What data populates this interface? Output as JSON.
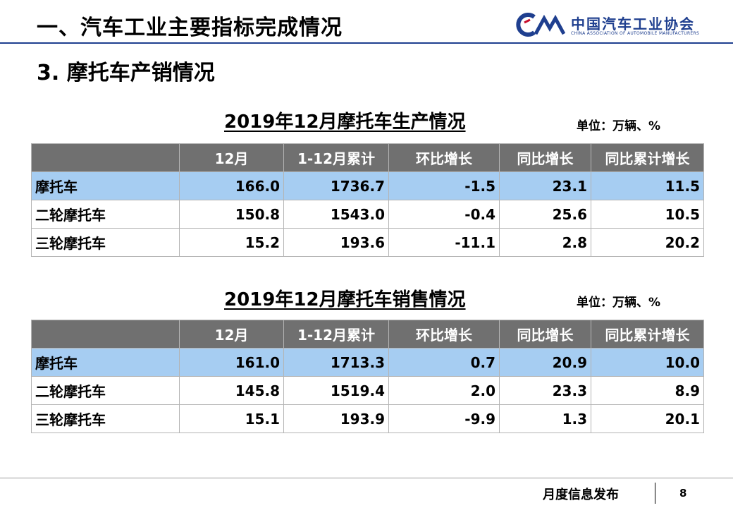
{
  "header": {
    "title": "一、汽车工业主要指标完成情况",
    "subtitle": "3. 摩托车产销情况",
    "logo_cn": "中国汽车工业协会",
    "logo_en": "CHINA ASSOCIATION OF AUTOMOBILE MANUFACTURERS",
    "logo_mark": "CAAM"
  },
  "columns": [
    "",
    "12月",
    "1-12月累计",
    "环比增长",
    "同比增长",
    "同比累计增长"
  ],
  "production": {
    "caption": "2019年12月摩托车生产情况",
    "unit": "单位：万辆、%",
    "rows": [
      {
        "name": "摩托车",
        "v": [
          "166.0",
          "1736.7",
          "-1.5",
          "23.1",
          "11.5"
        ]
      },
      {
        "name": "二轮摩托车",
        "v": [
          "150.8",
          "1543.0",
          "-0.4",
          "25.6",
          "10.5"
        ]
      },
      {
        "name": "三轮摩托车",
        "v": [
          "15.2",
          "193.6",
          "-11.1",
          "2.8",
          "20.2"
        ]
      }
    ]
  },
  "sales": {
    "caption": "2019年12月摩托车销售情况",
    "unit": "单位：万辆、%",
    "rows": [
      {
        "name": "摩托车",
        "v": [
          "161.0",
          "1713.3",
          "0.7",
          "20.9",
          "10.0"
        ]
      },
      {
        "name": "二轮摩托车",
        "v": [
          "145.8",
          "1519.4",
          "2.0",
          "23.3",
          "8.9"
        ]
      },
      {
        "name": "三轮摩托车",
        "v": [
          "15.1",
          "193.9",
          "-9.9",
          "1.3",
          "20.1"
        ]
      }
    ]
  },
  "footer": {
    "label": "月度信息发布",
    "page": "8"
  }
}
